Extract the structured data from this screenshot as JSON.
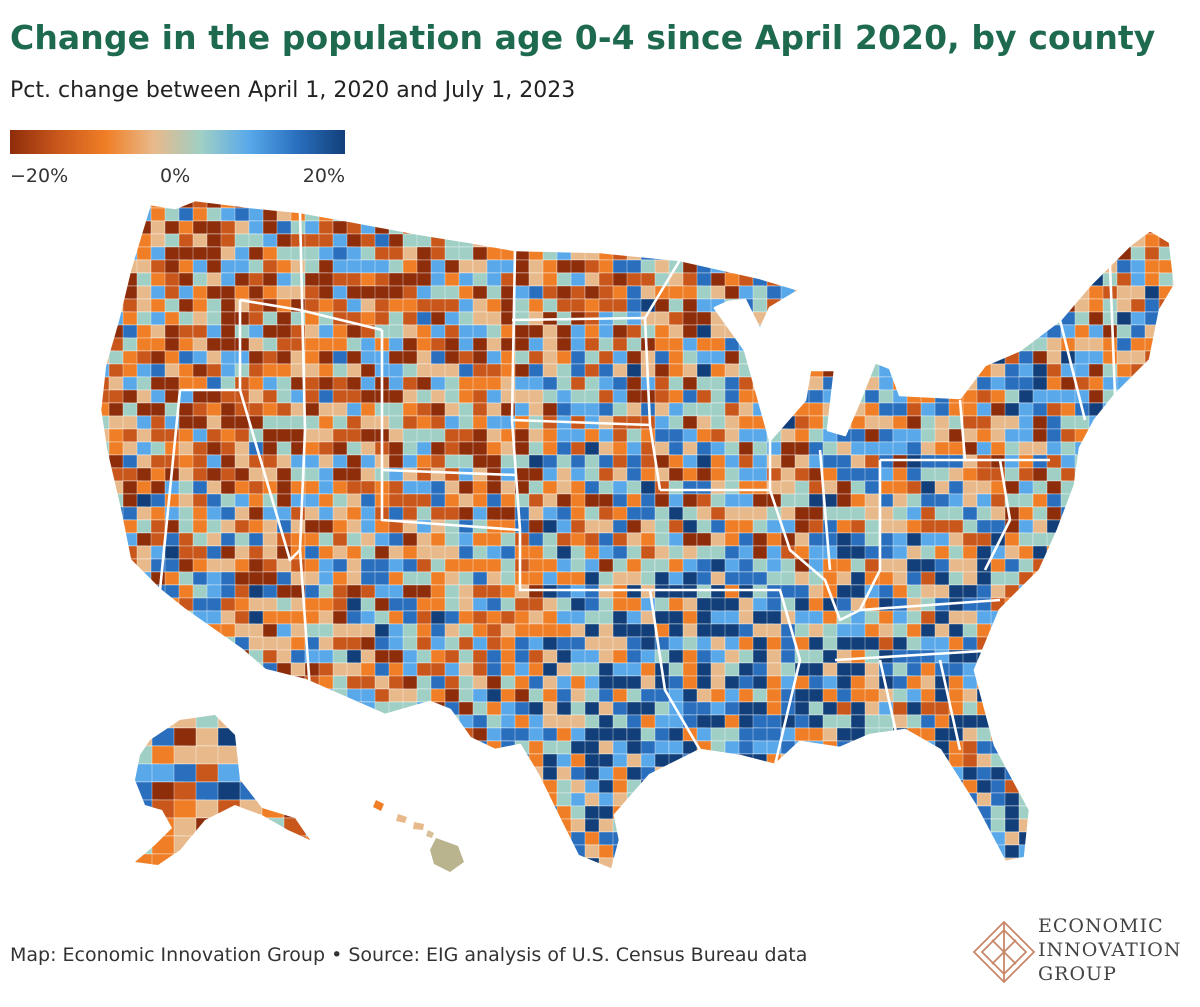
{
  "title": "Change in the population age 0-4 since April 2020, by county",
  "subtitle": "Pct. change between April 1, 2020 and July 1, 2023",
  "legend": {
    "ticks": [
      "−20%",
      "0%",
      "20%"
    ],
    "min_value": -20,
    "max_value": 20,
    "colors": [
      "#8e2d0a",
      "#c9571c",
      "#f07e26",
      "#e8b98a",
      "#9fcfc5",
      "#58a8ea",
      "#2a6fbe",
      "#123f7a"
    ]
  },
  "colors": {
    "title": "#1e6a4f",
    "state_borders": "#ffffff",
    "logo": "#c9886a"
  },
  "footer": "Map: Economic Innovation Group • Source: EIG analysis of U.S. Census Bureau data",
  "logo": {
    "line1": "ECONOMIC",
    "line2": "INNOVATION",
    "line3": "GROUP"
  }
}
